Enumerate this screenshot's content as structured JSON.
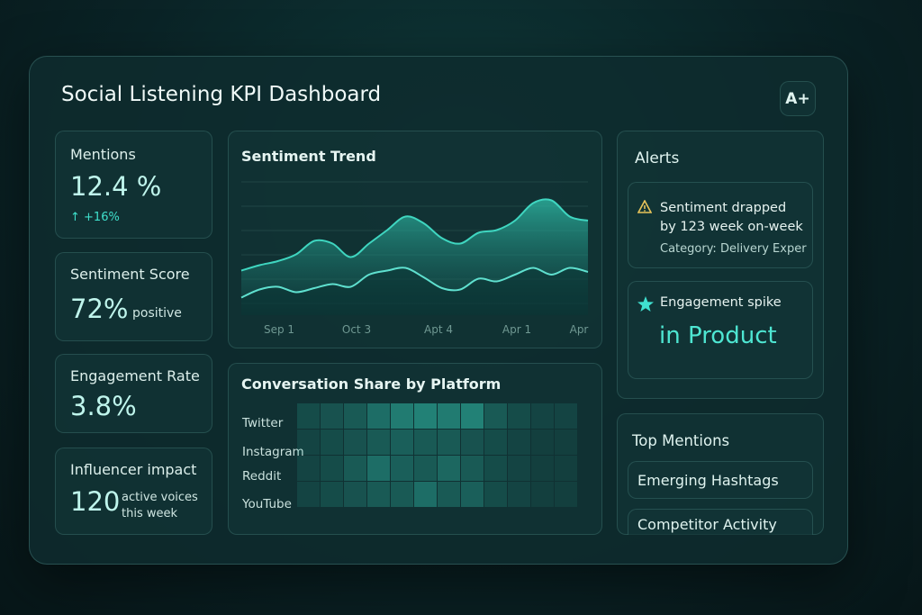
{
  "header": {
    "title": "Social Listening KPI Dashboard",
    "badge": "A+"
  },
  "kpis": [
    {
      "label": "Mentions",
      "value": "12.4 %",
      "change": "↑ +16%"
    },
    {
      "label": "Sentiment Score",
      "value": "72%",
      "suffix": "positive"
    },
    {
      "label": "Engagement Rate",
      "value": "3.8%"
    },
    {
      "label": "Influencer impact",
      "value": "120",
      "suffix": "active voices this week"
    }
  ],
  "sentiment_trend": {
    "title": "Sentiment Trend",
    "x_labels": [
      "Sep 1",
      "Oct 3",
      "Apt 4",
      "Apr 1",
      "Apr"
    ],
    "ylim": [
      0,
      100
    ],
    "series": [
      {
        "color": "#3fd6c0",
        "values": [
          33,
          37,
          40,
          45,
          55,
          53,
          43,
          53,
          63,
          73,
          68,
          57,
          53,
          61,
          63,
          70,
          83,
          85,
          73,
          70
        ]
      },
      {
        "color": "#5fe0cf",
        "values": [
          13,
          19,
          21,
          17,
          20,
          23,
          21,
          30,
          33,
          35,
          28,
          20,
          19,
          27,
          25,
          30,
          35,
          30,
          35,
          32
        ]
      }
    ]
  },
  "platform_share": {
    "title": "Conversation Share by Platform",
    "platforms": [
      "Twitter",
      "Instagram",
      "Reddit",
      "YouTube"
    ],
    "color": "#2fb8a4",
    "cells": [
      [
        0.2,
        0.25,
        0.3,
        0.45,
        0.55,
        0.6,
        0.55,
        0.6,
        0.3,
        0.2,
        0.15,
        0.15
      ],
      [
        0.15,
        0.2,
        0.25,
        0.3,
        0.35,
        0.3,
        0.3,
        0.25,
        0.2,
        0.15,
        0.1,
        0.1
      ],
      [
        0.15,
        0.2,
        0.3,
        0.45,
        0.35,
        0.3,
        0.4,
        0.3,
        0.2,
        0.15,
        0.1,
        0.1
      ],
      [
        0.15,
        0.2,
        0.25,
        0.3,
        0.3,
        0.45,
        0.3,
        0.35,
        0.2,
        0.15,
        0.1,
        0.1
      ]
    ]
  },
  "alerts": {
    "title": "Alerts",
    "items": [
      {
        "text": "Sentiment drapped by 123 week on-week",
        "detail": "Category: Delivery Exper"
      },
      {
        "text": "Engagement spike",
        "highlight": "in Product"
      }
    ]
  },
  "top_mentions": {
    "title": "Top Mentions",
    "items": [
      "Emerging Hashtags",
      "Competitor Activity"
    ]
  }
}
